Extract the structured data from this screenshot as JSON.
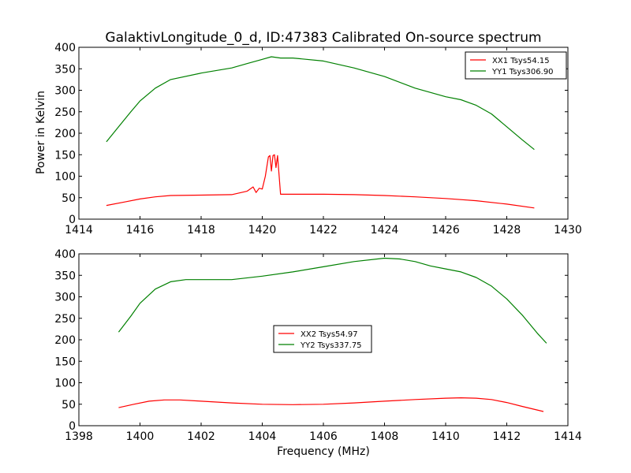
{
  "figure": {
    "title": "GalaktivLongitude_0_d, ID:47383 Calibrated On-source spectrum",
    "ylabel": "Power in Kelvin",
    "xlabel": "Frequency (MHz)"
  },
  "colors": {
    "red": "#ff0000",
    "green": "#008000",
    "axes": "#000000",
    "background": "#ffffff"
  },
  "chart_data": [
    {
      "type": "line",
      "title": "GalaktivLongitude_0_d, ID:47383 Calibrated On-source spectrum",
      "ylabel": "Power in Kelvin",
      "xlabel": "",
      "xlim": [
        1414,
        1430
      ],
      "ylim": [
        0,
        400
      ],
      "xticks": [
        "1414",
        "1416",
        "1418",
        "1420",
        "1422",
        "1424",
        "1426",
        "1428",
        "1430"
      ],
      "yticks": [
        "0",
        "50",
        "100",
        "150",
        "200",
        "250",
        "300",
        "350",
        "400"
      ],
      "legend_position": "top-right",
      "grid": false,
      "series": [
        {
          "name": "XX1 Tsys54.15",
          "color": "#ff0000",
          "x": [
            1414.9,
            1415.5,
            1416.0,
            1416.5,
            1417.0,
            1418.0,
            1419.0,
            1419.5,
            1419.7,
            1419.8,
            1419.9,
            1420.0,
            1420.1,
            1420.2,
            1420.25,
            1420.3,
            1420.35,
            1420.4,
            1420.45,
            1420.5,
            1420.6,
            1421.0,
            1422.0,
            1423.0,
            1424.0,
            1425.0,
            1426.0,
            1427.0,
            1428.0,
            1428.9
          ],
          "y": [
            32,
            40,
            47,
            52,
            55,
            56,
            57,
            65,
            75,
            62,
            72,
            70,
            100,
            145,
            148,
            112,
            148,
            150,
            120,
            148,
            58,
            58,
            58,
            57,
            55,
            52,
            48,
            43,
            35,
            26
          ]
        },
        {
          "name": "YY1 Tsys306.90",
          "color": "#008000",
          "x": [
            1414.9,
            1415.3,
            1415.7,
            1416.0,
            1416.5,
            1417.0,
            1418.0,
            1419.0,
            1419.5,
            1420.0,
            1420.3,
            1420.6,
            1421.0,
            1422.0,
            1423.0,
            1424.0,
            1425.0,
            1426.0,
            1426.5,
            1427.0,
            1427.5,
            1428.0,
            1428.5,
            1428.9
          ],
          "y": [
            180,
            215,
            250,
            275,
            305,
            325,
            340,
            352,
            362,
            372,
            378,
            375,
            375,
            368,
            352,
            332,
            305,
            285,
            278,
            265,
            245,
            215,
            185,
            162
          ]
        }
      ]
    },
    {
      "type": "line",
      "title": "",
      "ylabel": "",
      "xlabel": "Frequency (MHz)",
      "xlim": [
        1398,
        1414
      ],
      "ylim": [
        0,
        400
      ],
      "xticks": [
        "1398",
        "1400",
        "1402",
        "1404",
        "1406",
        "1408",
        "1410",
        "1412",
        "1414"
      ],
      "yticks": [
        "0",
        "50",
        "100",
        "150",
        "200",
        "250",
        "300",
        "350",
        "400"
      ],
      "legend_position": "center",
      "grid": false,
      "series": [
        {
          "name": "XX2 Tsys54.97",
          "color": "#ff0000",
          "x": [
            1399.3,
            1399.8,
            1400.3,
            1400.8,
            1401.3,
            1402.0,
            1403.0,
            1404.0,
            1405.0,
            1406.0,
            1407.0,
            1408.0,
            1409.0,
            1410.0,
            1410.5,
            1411.0,
            1411.5,
            1412.0,
            1412.5,
            1413.2
          ],
          "y": [
            42,
            50,
            57,
            60,
            60,
            57,
            53,
            50,
            49,
            50,
            53,
            57,
            61,
            64,
            65,
            64,
            61,
            54,
            45,
            33
          ]
        },
        {
          "name": "YY2 Tsys337.75",
          "color": "#008000",
          "x": [
            1399.3,
            1399.7,
            1400.0,
            1400.5,
            1401.0,
            1401.5,
            1402.0,
            1403.0,
            1404.0,
            1405.0,
            1406.0,
            1407.0,
            1408.0,
            1408.5,
            1409.0,
            1409.5,
            1410.0,
            1410.5,
            1411.0,
            1411.5,
            1412.0,
            1412.5,
            1413.0,
            1413.3
          ],
          "y": [
            218,
            255,
            285,
            318,
            335,
            340,
            340,
            340,
            348,
            358,
            370,
            382,
            390,
            388,
            382,
            372,
            365,
            358,
            345,
            325,
            295,
            258,
            215,
            192
          ]
        }
      ]
    }
  ]
}
